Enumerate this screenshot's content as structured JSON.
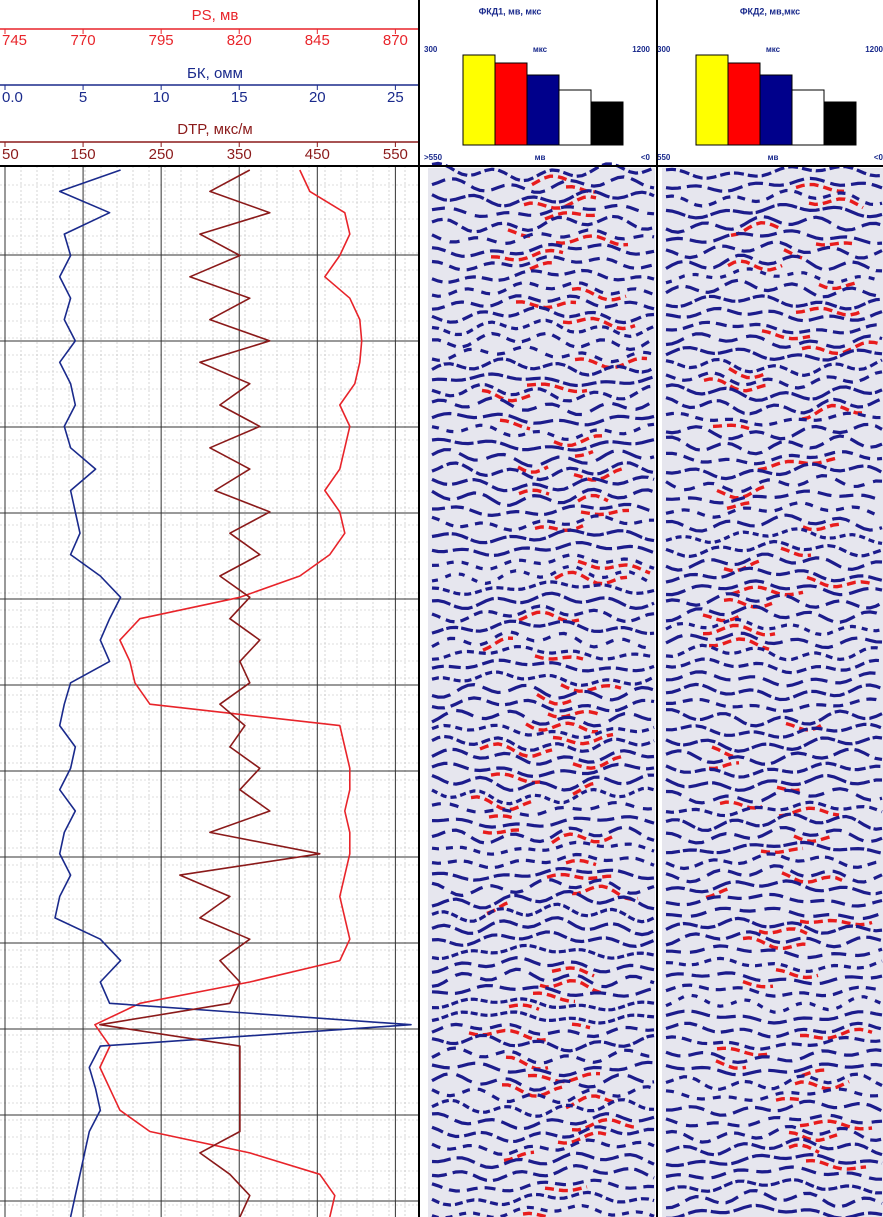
{
  "chart_data": {
    "type": "line",
    "orientation": "vertical",
    "grid": true,
    "series": [
      {
        "name": "PS, мв",
        "color": "#e8242a",
        "xlim": [
          745,
          875
        ],
        "xticks": [
          745,
          770,
          795,
          820,
          845,
          870
        ],
        "values": [
          839.4,
          842.6,
          853.8,
          855.4,
          852.2,
          847.4,
          855.4,
          858.6,
          859.2,
          858.6,
          857,
          852.2,
          855.4,
          853.8,
          852.2,
          847.4,
          852.2,
          853.8,
          849,
          839.4,
          820.2,
          788.2,
          781.8,
          785,
          786.6,
          791.4,
          852.2,
          853.8,
          855.4,
          855.4,
          853.8,
          855.4,
          855.4,
          853.8,
          852.2,
          853.8,
          855.4,
          852.2,
          823.4,
          788.2,
          773.8,
          778.6,
          775.4,
          778.6,
          781.8,
          791.4,
          823.4,
          845.8,
          850.6,
          849
        ]
      },
      {
        "name": "БК, омм",
        "color": "#1a2a8c",
        "xlim": [
          0,
          26
        ],
        "xticks": [
          {
            "value": 0,
            "label": "0.0"
          },
          5,
          10,
          15,
          20,
          25
        ],
        "values": [
          7.4,
          3.5,
          6.7,
          3.8,
          4.2,
          3.5,
          4.2,
          3.8,
          4.5,
          3.5,
          4.2,
          4.5,
          3.8,
          4.2,
          5.8,
          4.2,
          4.5,
          4.8,
          4.2,
          6.1,
          7.4,
          6.7,
          6.1,
          6.7,
          4.2,
          3.8,
          3.5,
          4.5,
          4.2,
          3.5,
          4.5,
          3.8,
          3.5,
          4.2,
          3.5,
          3.2,
          6.1,
          7.4,
          6.1,
          6.7,
          26,
          6.1,
          5.4,
          5.8,
          6.1,
          5.4,
          5.1,
          4.8,
          4.5,
          4.2
        ]
      },
      {
        "name": "DTP, мкс/м",
        "color": "#8b1a1a",
        "xlim": [
          50,
          570
        ],
        "xticks": [
          50,
          150,
          250,
          350,
          450,
          550
        ],
        "values": [
          363.6,
          312.4,
          389.2,
          299.6,
          350.8,
          286.8,
          363.6,
          312.4,
          389.2,
          299.6,
          363.6,
          325.2,
          376.4,
          312.4,
          363.6,
          318.8,
          389.2,
          338,
          376.4,
          325.2,
          363.6,
          338,
          376.4,
          350.8,
          363.6,
          325.2,
          357.2,
          338,
          376.4,
          350.8,
          389.2,
          312.4,
          453.2,
          274,
          338,
          299.6,
          363.6,
          325.2,
          350.8,
          338,
          171.6,
          350.8,
          350.8,
          350.8,
          350.8,
          350.8,
          299.6,
          338,
          363.6,
          350.8
        ]
      }
    ],
    "panels": [
      {
        "title": "ФКД1, мв, мкс",
        "top_left": "300",
        "top_mid": "мкс",
        "top_right": "1200",
        "bottom_left": ">550",
        "bottom_mid": "мв",
        "bottom_right": "<0"
      },
      {
        "title": "ФКД2, мв,мкс",
        "top_left": "300",
        "top_mid": "мкс",
        "top_right": "1200",
        "bottom_left": "550",
        "bottom_mid": "мв",
        "bottom_right": "<0"
      }
    ]
  }
}
